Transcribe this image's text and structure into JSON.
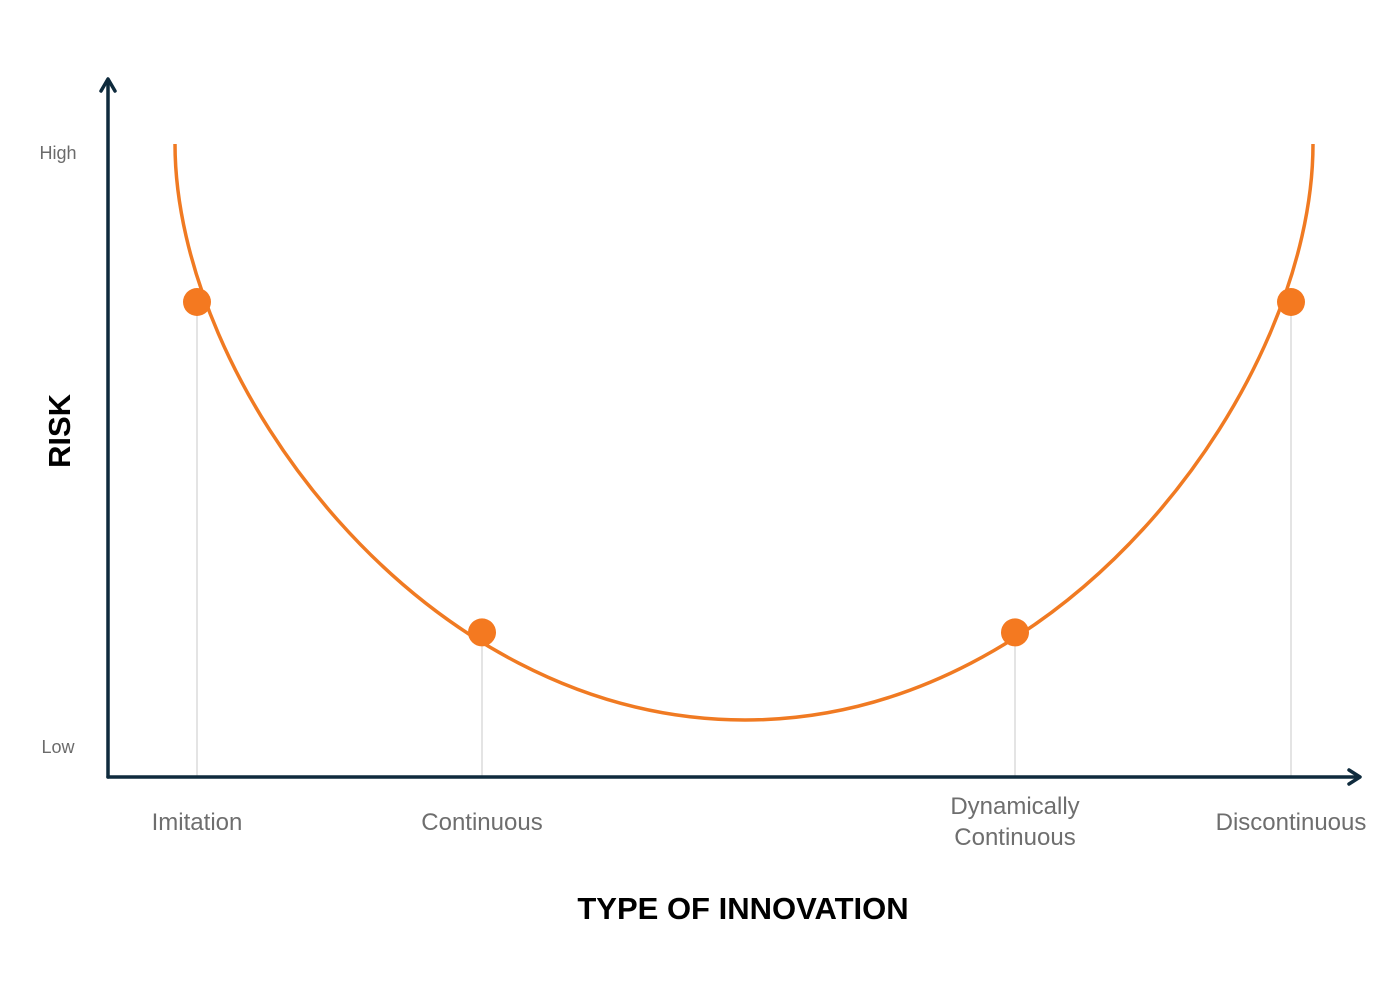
{
  "diagram": {
    "x_axis_title": "TYPE OF INNOVATION",
    "y_axis_title": "RISK",
    "y_levels": {
      "high": "High",
      "low": "Low"
    },
    "innovation_types": [
      {
        "label": "Imitation",
        "risk_level": 0.75
      },
      {
        "label": "Continuous",
        "risk_level": 0.15
      },
      {
        "label": "Dynamically\nContinuous",
        "risk_level": 0.15
      },
      {
        "label": "Discontinuous",
        "risk_level": 0.75
      }
    ],
    "colors": {
      "axis": "#0f2b3d",
      "curve": "#f07a22",
      "point": "#f47920",
      "guide": "#dcdcdc",
      "tick_text": "#6b6b6b",
      "title_text": "#000000"
    }
  }
}
